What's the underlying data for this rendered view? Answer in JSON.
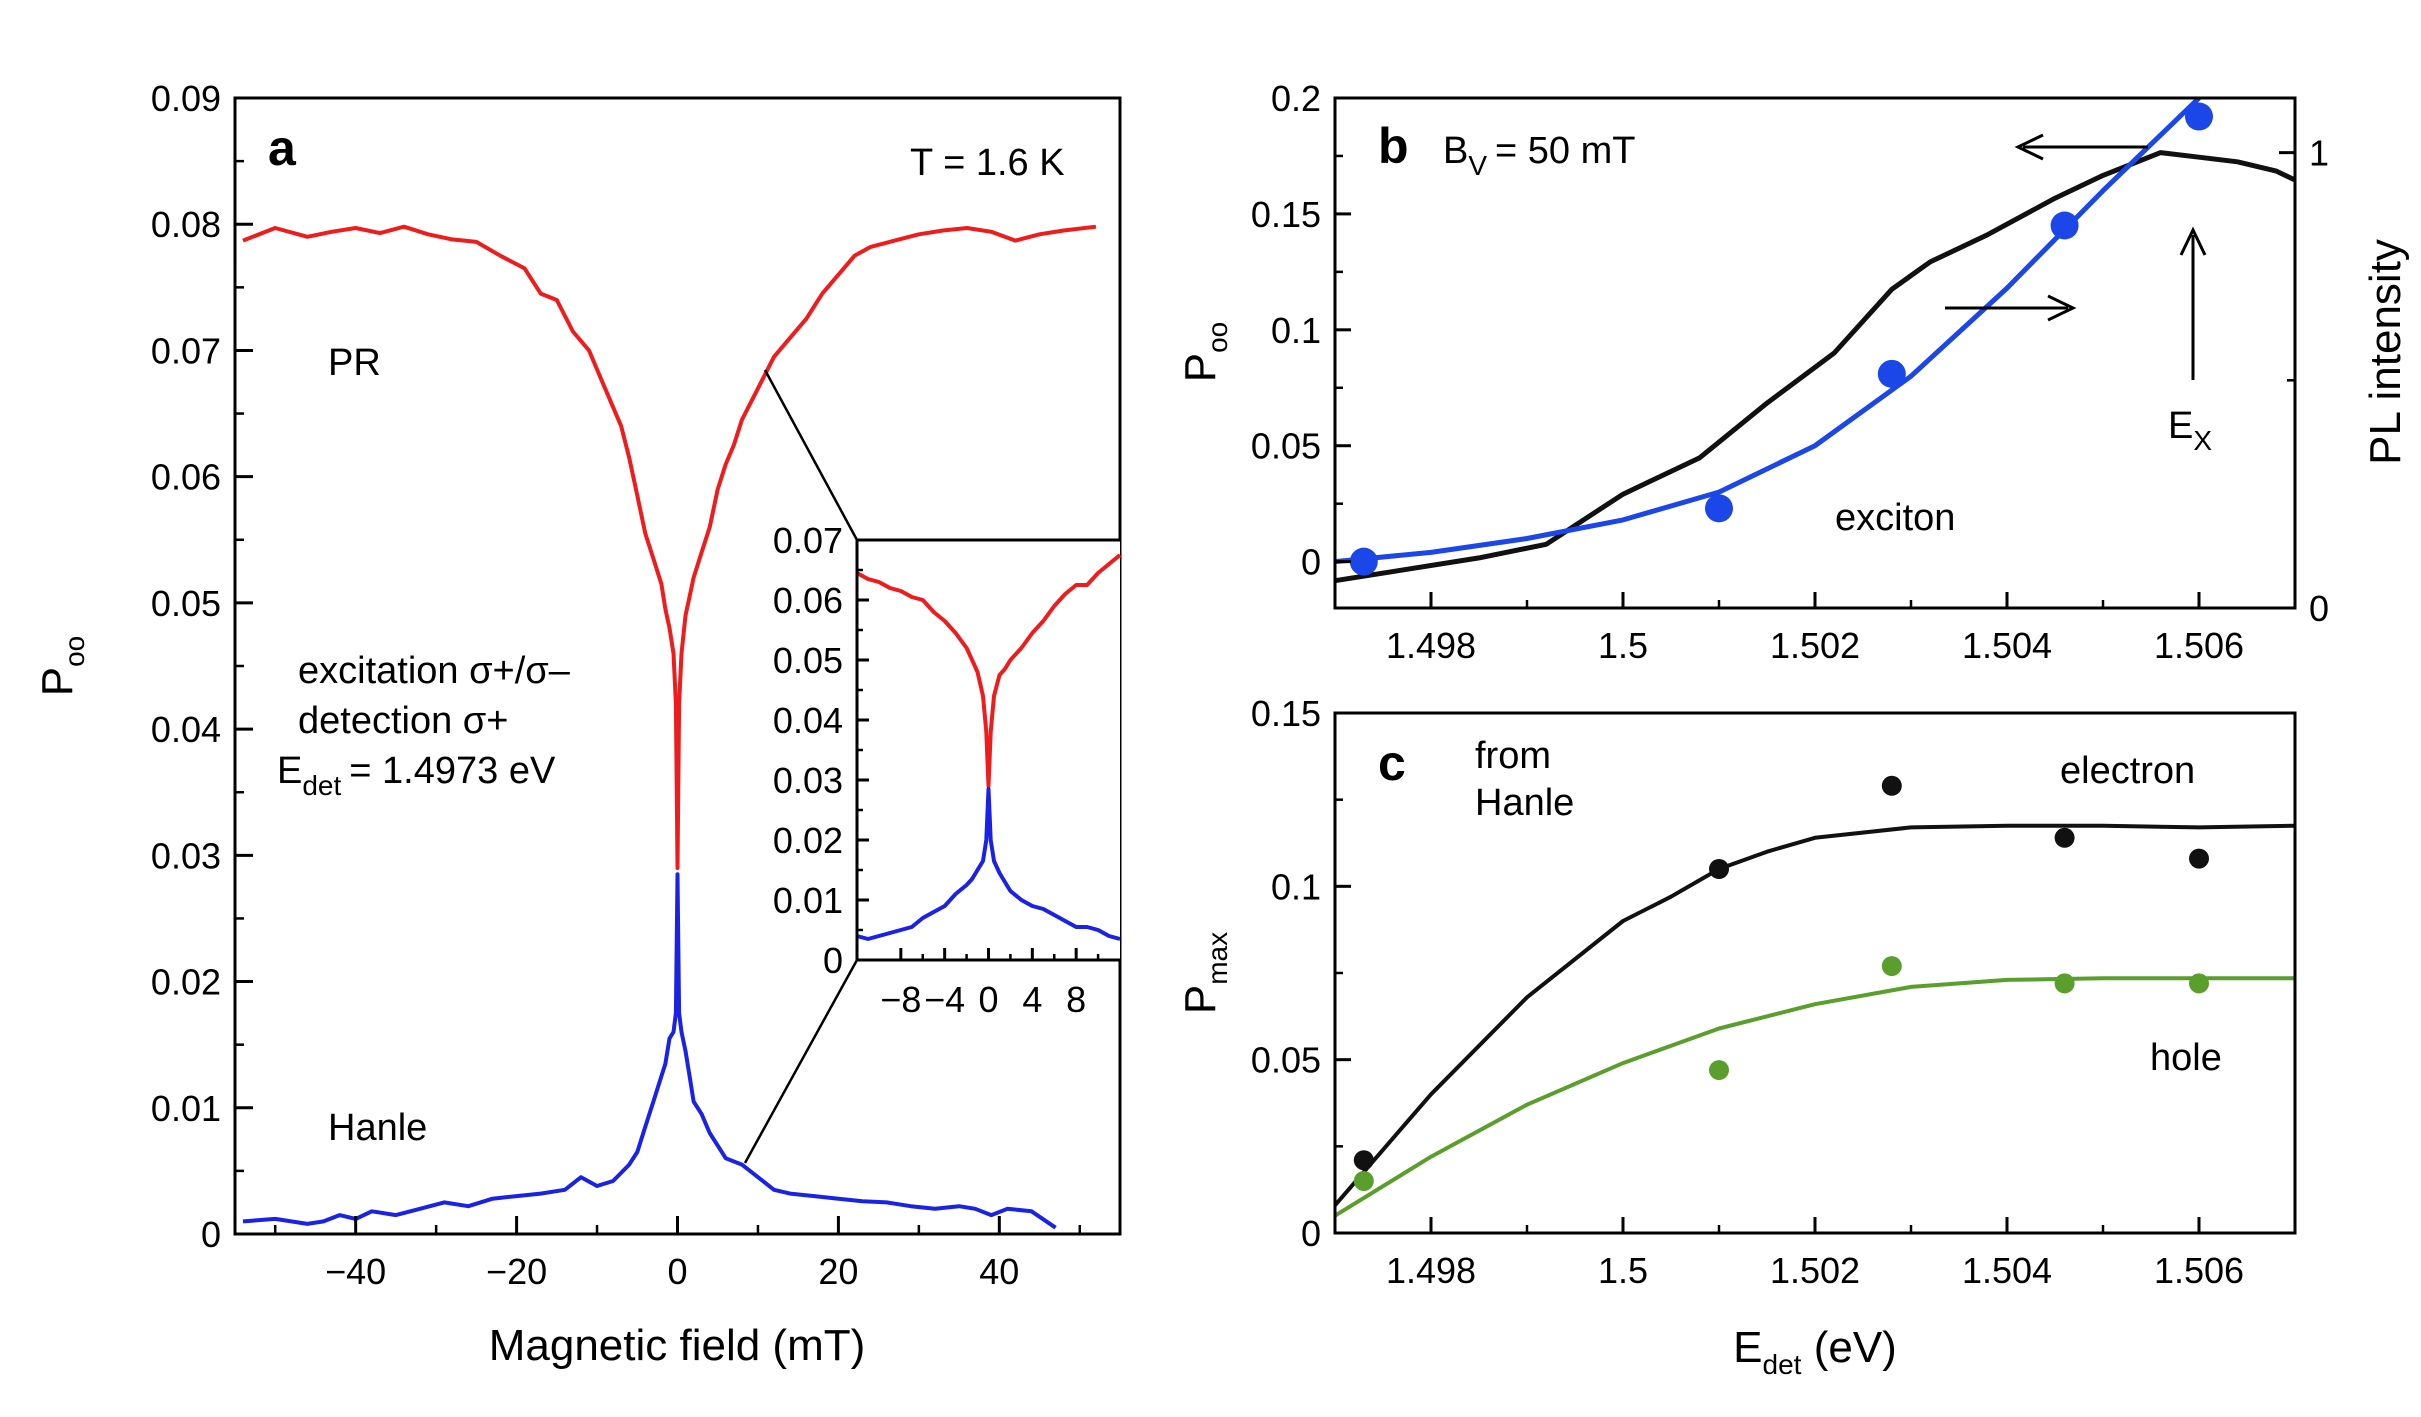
{
  "chart_data": [
    {
      "panel": "a",
      "type": "line",
      "panel_label": "a",
      "xlabel": "Magnetic field (mT)",
      "ylabel_main": "P",
      "ylabel_sub": "oo",
      "xlim": [
        -55,
        55
      ],
      "ylim": [
        0,
        0.09
      ],
      "xticks": [
        -40,
        -20,
        0,
        20,
        40
      ],
      "xtick_labels": [
        "−40",
        "−20",
        "0",
        "20",
        "40"
      ],
      "yticks": [
        0,
        0.01,
        0.02,
        0.03,
        0.04,
        0.05,
        0.06,
        0.07,
        0.08,
        0.09
      ],
      "ytick_labels": [
        "0",
        "0.01",
        "0.02",
        "0.03",
        "0.04",
        "0.05",
        "0.06",
        "0.07",
        "0.08",
        "0.09"
      ],
      "annotations": {
        "temperature": "T = 1.6 K",
        "pr_label": "PR",
        "hanle_label": "Hanle",
        "excitation": "excitation σ+/σ–",
        "detection": "detection σ+",
        "edet_main": "E",
        "edet_sub": "det",
        "edet_value": "= 1.4973 eV"
      },
      "series": [
        {
          "name": "PR",
          "color": "#ee1c1c",
          "x": [
            -54,
            -50,
            -46,
            -43,
            -40,
            -37,
            -34,
            -31,
            -28,
            -25,
            -22,
            -19,
            -17,
            -15,
            -13,
            -11,
            -10,
            -8,
            -7,
            -6,
            -5,
            -4,
            -3,
            -2,
            -1.5,
            -1,
            -0.5,
            -0.2,
            0,
            0.2,
            0.5,
            1,
            1.5,
            2,
            3,
            4,
            5,
            6,
            7,
            8,
            10,
            12,
            14,
            16,
            18,
            20,
            22,
            24,
            27,
            30,
            33,
            36,
            39,
            42,
            45,
            48,
            52
          ],
          "values": [
            0.0787,
            0.0797,
            0.079,
            0.0794,
            0.0797,
            0.0793,
            0.0798,
            0.0792,
            0.0788,
            0.0786,
            0.0775,
            0.0765,
            0.0745,
            0.074,
            0.0715,
            0.07,
            0.0685,
            0.0655,
            0.064,
            0.0615,
            0.0585,
            0.0555,
            0.0535,
            0.0515,
            0.0495,
            0.048,
            0.046,
            0.042,
            0.029,
            0.042,
            0.046,
            0.049,
            0.0505,
            0.052,
            0.054,
            0.056,
            0.059,
            0.061,
            0.0625,
            0.0645,
            0.067,
            0.0695,
            0.071,
            0.0725,
            0.0745,
            0.076,
            0.0775,
            0.0782,
            0.0787,
            0.0792,
            0.0795,
            0.0797,
            0.0794,
            0.0787,
            0.0792,
            0.0795,
            0.0798
          ]
        },
        {
          "name": "Hanle",
          "color": "#1a22e6",
          "x": [
            -54,
            -50,
            -46,
            -44,
            -42,
            -40,
            -38,
            -35,
            -32,
            -29,
            -26,
            -23,
            -20,
            -17,
            -14,
            -12,
            -10,
            -8,
            -6,
            -5,
            -4,
            -3,
            -2,
            -1.5,
            -1,
            -0.5,
            -0.2,
            0,
            0.2,
            0.5,
            1,
            1.5,
            2,
            3,
            4,
            5,
            6,
            8,
            10,
            12,
            14,
            17,
            20,
            23,
            26,
            29,
            32,
            35,
            37,
            39,
            41,
            44,
            47
          ],
          "values": [
            0.001,
            0.0012,
            0.0008,
            0.001,
            0.0015,
            0.0012,
            0.0018,
            0.0015,
            0.002,
            0.0025,
            0.0022,
            0.0028,
            0.003,
            0.0032,
            0.0035,
            0.0045,
            0.0038,
            0.0042,
            0.0055,
            0.0065,
            0.0085,
            0.0105,
            0.0125,
            0.0135,
            0.0155,
            0.016,
            0.0175,
            0.0285,
            0.0175,
            0.016,
            0.0145,
            0.0125,
            0.0105,
            0.0095,
            0.008,
            0.007,
            0.006,
            0.0055,
            0.0045,
            0.0035,
            0.0032,
            0.003,
            0.0028,
            0.0026,
            0.0025,
            0.0022,
            0.002,
            0.0022,
            0.002,
            0.0015,
            0.002,
            0.0018,
            0.0005
          ]
        }
      ],
      "inset": {
        "xlim": [
          -12,
          12
        ],
        "ylim": [
          0,
          0.07
        ],
        "xticks": [
          -8,
          -4,
          0,
          4,
          8
        ],
        "xtick_labels": [
          "−8",
          "−4",
          "0",
          "4",
          "8"
        ],
        "yticks": [
          0,
          0.01,
          0.02,
          0.03,
          0.04,
          0.05,
          0.06,
          0.07
        ],
        "ytick_labels": [
          "0",
          "0.01",
          "0.02",
          "0.03",
          "0.04",
          "0.05",
          "0.06",
          "0.07"
        ],
        "series": [
          {
            "name": "PR",
            "color": "#ee1c1c",
            "x": [
              -12,
              -11,
              -10,
              -9,
              -8,
              -7,
              -6,
              -5,
              -4,
              -3,
              -2,
              -1.5,
              -1,
              -0.5,
              -0.2,
              0,
              0.2,
              0.5,
              1,
              1.5,
              2,
              3,
              4,
              5,
              6,
              7,
              8,
              9,
              10,
              11,
              12
            ],
            "values": [
              0.0645,
              0.0635,
              0.063,
              0.062,
              0.0615,
              0.0605,
              0.06,
              0.058,
              0.0565,
              0.0545,
              0.052,
              0.05,
              0.048,
              0.044,
              0.038,
              0.029,
              0.038,
              0.044,
              0.0475,
              0.0485,
              0.05,
              0.052,
              0.0545,
              0.0565,
              0.059,
              0.061,
              0.0625,
              0.0625,
              0.0645,
              0.066,
              0.0675
            ]
          },
          {
            "name": "Hanle",
            "color": "#1a22e6",
            "x": [
              -12,
              -11,
              -10,
              -9,
              -8,
              -7,
              -6,
              -5,
              -4,
              -3,
              -2,
              -1.5,
              -1,
              -0.5,
              -0.2,
              0,
              0.2,
              0.5,
              1,
              1.5,
              2,
              3,
              4,
              5,
              6,
              7,
              8,
              9,
              10,
              11,
              12
            ],
            "values": [
              0.004,
              0.0035,
              0.004,
              0.0045,
              0.005,
              0.0055,
              0.007,
              0.008,
              0.009,
              0.011,
              0.0125,
              0.0135,
              0.015,
              0.0165,
              0.02,
              0.0285,
              0.02,
              0.0165,
              0.0145,
              0.013,
              0.0115,
              0.01,
              0.009,
              0.0085,
              0.0075,
              0.0065,
              0.0055,
              0.0055,
              0.005,
              0.004,
              0.0035
            ]
          }
        ]
      }
    },
    {
      "panel": "b",
      "type": "line",
      "panel_label": "b",
      "xlabel": "",
      "ylabel_main": "P",
      "ylabel_sub": "oo",
      "ylabel_right": "PL intensity",
      "xlim": [
        1.497,
        1.507
      ],
      "ylim": [
        -0.02,
        0.2
      ],
      "ylim_right": [
        0,
        1.12
      ],
      "xticks": [
        1.498,
        1.5,
        1.502,
        1.504,
        1.506
      ],
      "xtick_labels": [
        "1.498",
        "1.5",
        "1.502",
        "1.504",
        "1.506"
      ],
      "yticks": [
        0,
        0.05,
        0.1,
        0.15,
        0.2
      ],
      "ytick_labels": [
        "0",
        "0.05",
        "0.1",
        "0.15",
        "0.2"
      ],
      "yticks_right": [
        0,
        1
      ],
      "ytick_labels_right": [
        "0",
        "1"
      ],
      "annotations": {
        "bv_main": "B",
        "bv_sub": "V",
        "bv_value": "= 50 mT",
        "exciton": "exciton",
        "ex_main": "E",
        "ex_sub": "X"
      },
      "series": [
        {
          "name": "Poo data",
          "kind": "scatter",
          "color": "#1b46e8",
          "x": [
            1.4973,
            1.501,
            1.5028,
            1.5046,
            1.506
          ],
          "values": [
            0.0,
            0.023,
            0.081,
            0.145,
            0.192
          ]
        },
        {
          "name": "Poo fit",
          "kind": "line",
          "color": "#1b46e8",
          "x": [
            1.497,
            1.498,
            1.499,
            1.5,
            1.501,
            1.502,
            1.503,
            1.504,
            1.505,
            1.506
          ],
          "values": [
            0.0,
            0.004,
            0.01,
            0.018,
            0.03,
            0.05,
            0.08,
            0.118,
            0.16,
            0.2
          ]
        },
        {
          "name": "PL intensity",
          "kind": "line",
          "axis": "right",
          "color": "#111111",
          "x": [
            1.497,
            1.4985,
            1.4992,
            1.5,
            1.5008,
            1.5015,
            1.5022,
            1.5028,
            1.5032,
            1.5038,
            1.5045,
            1.505,
            1.5056,
            1.506,
            1.5064,
            1.5068,
            1.507
          ],
          "values": [
            0.06,
            0.11,
            0.14,
            0.25,
            0.33,
            0.45,
            0.56,
            0.7,
            0.76,
            0.82,
            0.9,
            0.95,
            1.0,
            0.99,
            0.98,
            0.96,
            0.94
          ]
        }
      ]
    },
    {
      "panel": "c",
      "type": "scatter",
      "panel_label": "c",
      "xlabel_main": "E",
      "xlabel_sub": "det",
      "xlabel_unit": " (eV)",
      "ylabel_main": "P",
      "ylabel_sub": "max",
      "xlim": [
        1.497,
        1.507
      ],
      "ylim": [
        0,
        0.15
      ],
      "xticks": [
        1.498,
        1.5,
        1.502,
        1.504,
        1.506
      ],
      "xtick_labels": [
        "1.498",
        "1.5",
        "1.502",
        "1.504",
        "1.506"
      ],
      "yticks": [
        0,
        0.05,
        0.1,
        0.15
      ],
      "ytick_labels": [
        "0",
        "0.05",
        "0.1",
        "0.15"
      ],
      "annotations": {
        "from_line1": "from",
        "from_line2": "Hanle",
        "electron": "electron",
        "hole": "hole"
      },
      "series": [
        {
          "name": "electron data",
          "kind": "scatter",
          "color": "#111111",
          "x": [
            1.4973,
            1.501,
            1.5028,
            1.5046,
            1.506
          ],
          "values": [
            0.021,
            0.105,
            0.129,
            0.114,
            0.108
          ]
        },
        {
          "name": "electron fit",
          "kind": "line",
          "color": "#111111",
          "x": [
            1.497,
            1.498,
            1.499,
            1.5,
            1.5005,
            1.501,
            1.5015,
            1.502,
            1.503,
            1.504,
            1.505,
            1.506,
            1.507
          ],
          "values": [
            0.008,
            0.04,
            0.068,
            0.09,
            0.097,
            0.105,
            0.11,
            0.114,
            0.117,
            0.1175,
            0.1175,
            0.117,
            0.1175
          ]
        },
        {
          "name": "hole data",
          "kind": "scatter",
          "color": "#5a9e2c",
          "x": [
            1.4973,
            1.501,
            1.5028,
            1.5046,
            1.506
          ],
          "values": [
            0.015,
            0.047,
            0.077,
            0.072,
            0.072
          ]
        },
        {
          "name": "hole fit",
          "kind": "line",
          "color": "#5a9e2c",
          "x": [
            1.497,
            1.498,
            1.499,
            1.5,
            1.501,
            1.502,
            1.503,
            1.504,
            1.505,
            1.506,
            1.507
          ],
          "values": [
            0.005,
            0.022,
            0.037,
            0.049,
            0.059,
            0.066,
            0.071,
            0.073,
            0.0735,
            0.0735,
            0.0735
          ]
        }
      ]
    }
  ]
}
